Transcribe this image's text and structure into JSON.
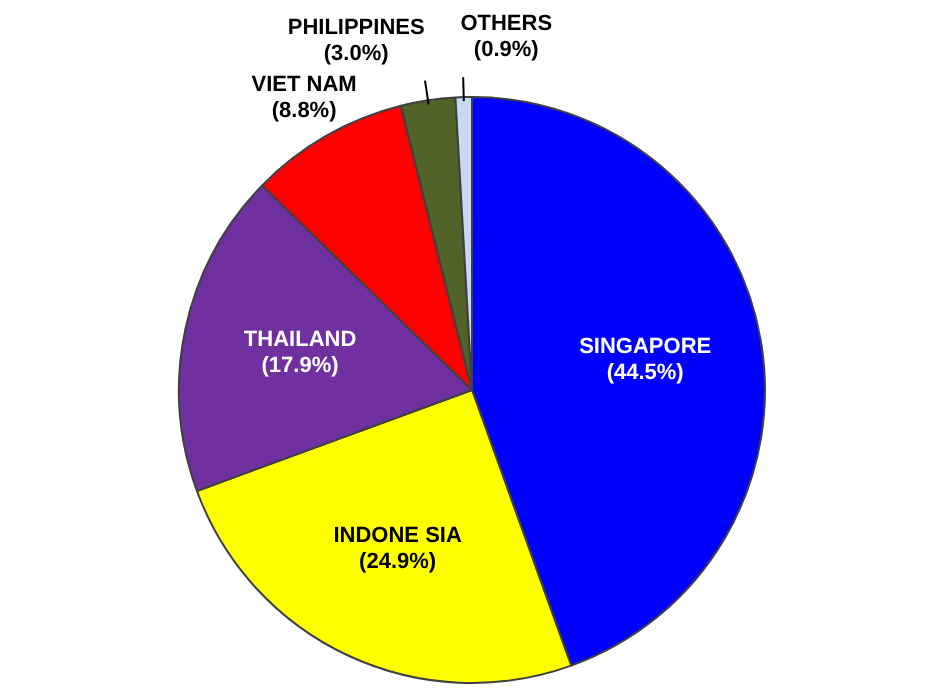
{
  "chart_data": {
    "type": "pie",
    "categories": [
      "SINGAPORE",
      "INDONE SIA",
      "THAILAND",
      "VIET NAM",
      "PHILIPPINES",
      "OTHERS"
    ],
    "values": [
      44.5,
      24.9,
      17.9,
      8.8,
      3.0,
      0.9
    ],
    "colors": [
      "#0000ff",
      "#ffff00",
      "#7030a0",
      "#ff0000",
      "#4f6228",
      "#c6d9f1"
    ],
    "value_labels": [
      "(44.5%)",
      "(24.9%)",
      "(17.9%)",
      "(8.8%)",
      "(3.0%)",
      "(0.9%)"
    ],
    "legend": false
  }
}
